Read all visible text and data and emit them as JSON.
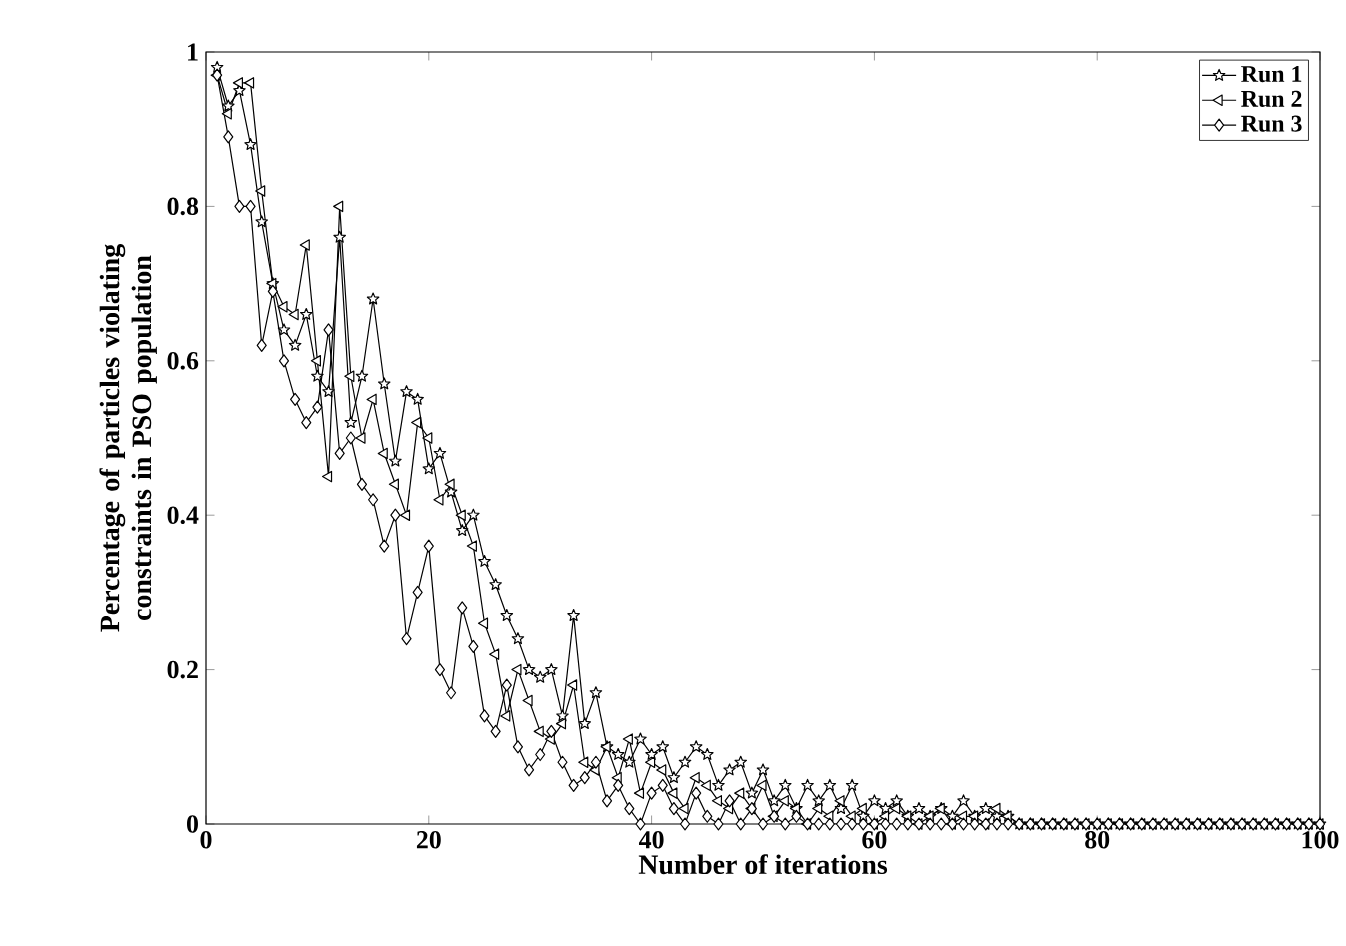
{
  "chart_data": {
    "type": "line",
    "xlabel": "Number of iterations",
    "ylabel": "Percentage of particles violating constraints in PSO population",
    "x": [
      1,
      2,
      3,
      4,
      5,
      6,
      7,
      8,
      9,
      10,
      11,
      12,
      13,
      14,
      15,
      16,
      17,
      18,
      19,
      20,
      21,
      22,
      23,
      24,
      25,
      26,
      27,
      28,
      29,
      30,
      31,
      32,
      33,
      34,
      35,
      36,
      37,
      38,
      39,
      40,
      41,
      42,
      43,
      44,
      45,
      46,
      47,
      48,
      49,
      50,
      51,
      52,
      53,
      54,
      55,
      56,
      57,
      58,
      59,
      60,
      61,
      62,
      63,
      64,
      65,
      66,
      67,
      68,
      69,
      70,
      71,
      72,
      73,
      74,
      75,
      76,
      77,
      78,
      79,
      80,
      81,
      82,
      83,
      84,
      85,
      86,
      87,
      88,
      89,
      90,
      91,
      92,
      93,
      94,
      95,
      96,
      97,
      98,
      99,
      100
    ],
    "series": [
      {
        "name": "Run 1",
        "color": "#000000",
        "marker": "star",
        "values": [
          0.98,
          0.93,
          0.95,
          0.88,
          0.78,
          0.7,
          0.64,
          0.62,
          0.66,
          0.58,
          0.56,
          0.76,
          0.52,
          0.58,
          0.68,
          0.57,
          0.47,
          0.56,
          0.55,
          0.46,
          0.48,
          0.43,
          0.38,
          0.4,
          0.34,
          0.31,
          0.27,
          0.24,
          0.2,
          0.19,
          0.2,
          0.14,
          0.27,
          0.13,
          0.17,
          0.1,
          0.09,
          0.08,
          0.11,
          0.09,
          0.1,
          0.06,
          0.08,
          0.1,
          0.09,
          0.05,
          0.07,
          0.08,
          0.04,
          0.07,
          0.03,
          0.05,
          0.02,
          0.05,
          0.03,
          0.05,
          0.02,
          0.05,
          0.01,
          0.03,
          0.02,
          0.03,
          0.01,
          0.02,
          0.01,
          0.02,
          0.01,
          0.03,
          0.01,
          0.02,
          0.01,
          0.01,
          0,
          0,
          0,
          0,
          0,
          0,
          0,
          0,
          0,
          0,
          0,
          0,
          0,
          0,
          0,
          0,
          0,
          0,
          0,
          0,
          0,
          0,
          0,
          0,
          0,
          0,
          0,
          0
        ]
      },
      {
        "name": "Run 2",
        "color": "#000000",
        "marker": "triangle",
        "values": [
          0.97,
          0.92,
          0.96,
          0.96,
          0.82,
          0.7,
          0.67,
          0.66,
          0.75,
          0.6,
          0.45,
          0.8,
          0.58,
          0.5,
          0.55,
          0.48,
          0.44,
          0.4,
          0.52,
          0.5,
          0.42,
          0.44,
          0.4,
          0.36,
          0.26,
          0.22,
          0.14,
          0.2,
          0.16,
          0.12,
          0.11,
          0.13,
          0.18,
          0.08,
          0.07,
          0.1,
          0.06,
          0.11,
          0.04,
          0.08,
          0.07,
          0.04,
          0.02,
          0.06,
          0.05,
          0.03,
          0.02,
          0.04,
          0.02,
          0.05,
          0.01,
          0.03,
          0.02,
          0,
          0.02,
          0.01,
          0.03,
          0.01,
          0.02,
          0,
          0.01,
          0.02,
          0.01,
          0,
          0.01,
          0.02,
          0,
          0.01,
          0.01,
          0,
          0.02,
          0.01,
          0,
          0,
          0,
          0,
          0,
          0,
          0,
          0,
          0,
          0,
          0,
          0,
          0,
          0,
          0,
          0,
          0,
          0,
          0,
          0,
          0,
          0,
          0,
          0,
          0,
          0,
          0,
          0
        ]
      },
      {
        "name": "Run 3",
        "color": "#000000",
        "marker": "diamond",
        "values": [
          0.97,
          0.89,
          0.8,
          0.8,
          0.62,
          0.69,
          0.6,
          0.55,
          0.52,
          0.54,
          0.64,
          0.48,
          0.5,
          0.44,
          0.42,
          0.36,
          0.4,
          0.24,
          0.3,
          0.36,
          0.2,
          0.17,
          0.28,
          0.23,
          0.14,
          0.12,
          0.18,
          0.1,
          0.07,
          0.09,
          0.12,
          0.08,
          0.05,
          0.06,
          0.08,
          0.03,
          0.05,
          0.02,
          0,
          0.04,
          0.05,
          0.02,
          0,
          0.04,
          0.01,
          0,
          0.03,
          0,
          0.02,
          0,
          0.01,
          0,
          0.01,
          0,
          0,
          0,
          0,
          0,
          0,
          0,
          0,
          0,
          0,
          0,
          0,
          0,
          0,
          0,
          0,
          0,
          0,
          0,
          0,
          0,
          0,
          0,
          0,
          0,
          0,
          0,
          0,
          0,
          0,
          0,
          0,
          0,
          0,
          0,
          0,
          0,
          0,
          0,
          0,
          0,
          0,
          0,
          0,
          0,
          0,
          0
        ]
      }
    ],
    "xlim": [
      0,
      100
    ],
    "xticks": [
      0,
      20,
      40,
      60,
      80,
      100
    ],
    "ylim": [
      0,
      1
    ],
    "yticks": [
      0,
      0.2,
      0.4,
      0.6,
      0.8,
      1
    ],
    "legend": "top right",
    "grid": false,
    "line_style": "solid"
  }
}
